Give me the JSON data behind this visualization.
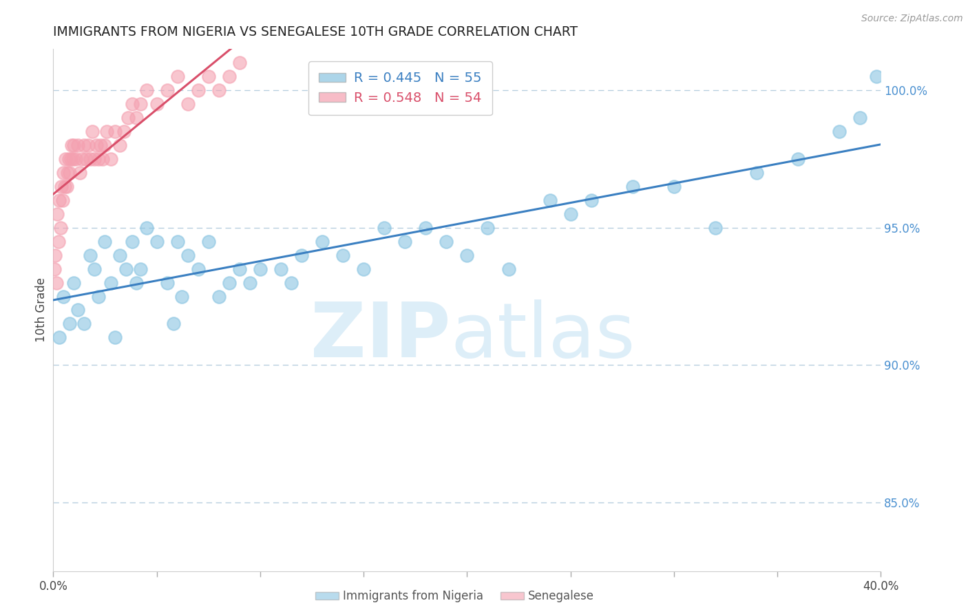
{
  "title": "IMMIGRANTS FROM NIGERIA VS SENEGALESE 10TH GRADE CORRELATION CHART",
  "source": "Source: ZipAtlas.com",
  "ylabel": "10th Grade",
  "right_yticks": [
    85.0,
    90.0,
    95.0,
    100.0
  ],
  "legend_labels": [
    "R = 0.445   N = 55",
    "R = 0.548   N = 54"
  ],
  "nigeria_color": "#89c4e1",
  "senegal_color": "#f4a0b0",
  "nigeria_line_color": "#3a7fc1",
  "senegal_line_color": "#d94f6a",
  "bg_color": "#ffffff",
  "grid_color": "#b8cfe0",
  "title_color": "#222222",
  "right_axis_color": "#4a90d0",
  "watermark_color": "#ddeef8",
  "xlim": [
    0.0,
    40.0
  ],
  "ylim": [
    82.5,
    101.5
  ],
  "nigeria_x": [
    0.3,
    0.5,
    0.8,
    1.0,
    1.2,
    1.5,
    1.8,
    2.0,
    2.2,
    2.5,
    2.8,
    3.0,
    3.2,
    3.5,
    3.8,
    4.0,
    4.5,
    5.0,
    5.5,
    6.0,
    6.5,
    7.0,
    7.5,
    8.0,
    8.5,
    9.0,
    9.5,
    10.0,
    11.0,
    12.0,
    13.0,
    14.0,
    15.0,
    16.0,
    17.0,
    18.0,
    19.0,
    20.0,
    21.0,
    22.0,
    24.0,
    25.0,
    26.0,
    28.0,
    30.0,
    32.0,
    34.0,
    36.0,
    38.0,
    39.0,
    11.5,
    6.2,
    5.8,
    4.2,
    39.8
  ],
  "nigeria_y": [
    91.0,
    92.5,
    91.5,
    93.0,
    92.0,
    91.5,
    94.0,
    93.5,
    92.5,
    94.5,
    93.0,
    91.0,
    94.0,
    93.5,
    94.5,
    93.0,
    95.0,
    94.5,
    93.0,
    94.5,
    94.0,
    93.5,
    94.5,
    92.5,
    93.0,
    93.5,
    93.0,
    93.5,
    93.5,
    94.0,
    94.5,
    94.0,
    93.5,
    95.0,
    94.5,
    95.0,
    94.5,
    94.0,
    95.0,
    93.5,
    96.0,
    95.5,
    96.0,
    96.5,
    96.5,
    95.0,
    97.0,
    97.5,
    98.5,
    99.0,
    93.0,
    92.5,
    91.5,
    93.5,
    100.5
  ],
  "senegal_x": [
    0.05,
    0.1,
    0.15,
    0.2,
    0.25,
    0.3,
    0.35,
    0.4,
    0.45,
    0.5,
    0.55,
    0.6,
    0.65,
    0.7,
    0.75,
    0.8,
    0.85,
    0.9,
    0.95,
    1.0,
    1.1,
    1.2,
    1.3,
    1.4,
    1.5,
    1.6,
    1.7,
    1.8,
    1.9,
    2.0,
    2.1,
    2.2,
    2.3,
    2.4,
    2.5,
    2.6,
    2.8,
    3.0,
    3.2,
    3.4,
    3.6,
    3.8,
    4.0,
    4.2,
    4.5,
    5.0,
    5.5,
    6.0,
    6.5,
    7.0,
    7.5,
    8.0,
    8.5,
    9.0
  ],
  "senegal_y": [
    93.5,
    94.0,
    93.0,
    95.5,
    94.5,
    96.0,
    95.0,
    96.5,
    96.0,
    97.0,
    96.5,
    97.5,
    96.5,
    97.0,
    97.5,
    97.0,
    97.5,
    98.0,
    97.5,
    98.0,
    97.5,
    98.0,
    97.0,
    97.5,
    98.0,
    97.5,
    98.0,
    97.5,
    98.5,
    97.5,
    98.0,
    97.5,
    98.0,
    97.5,
    98.0,
    98.5,
    97.5,
    98.5,
    98.0,
    98.5,
    99.0,
    99.5,
    99.0,
    99.5,
    100.0,
    99.5,
    100.0,
    100.5,
    99.5,
    100.0,
    100.5,
    100.0,
    100.5,
    101.0
  ]
}
